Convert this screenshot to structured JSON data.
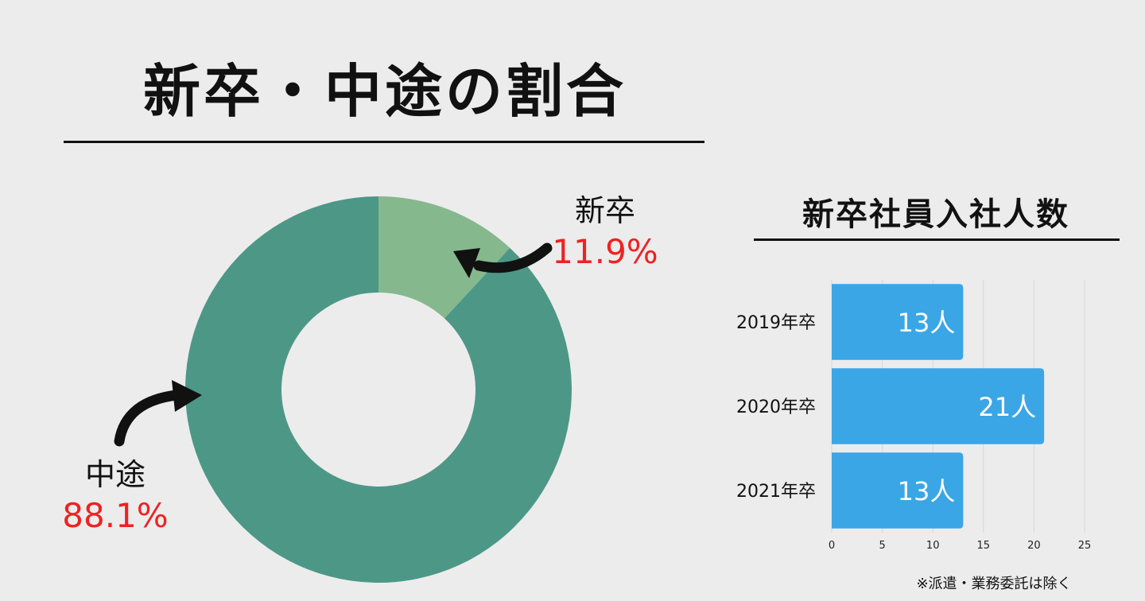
{
  "page": {
    "title": "新卒・中途の割合",
    "footnote": "※派遣・業務委託は除く"
  },
  "chart_data": [
    {
      "type": "pie",
      "variant": "donut",
      "categories": [
        "新卒",
        "中途"
      ],
      "values": [
        11.9,
        88.1
      ],
      "value_labels": [
        "11.9%",
        "88.1%"
      ],
      "colors": [
        "#86b88e",
        "#4d9787"
      ],
      "label_color": "#ee2222"
    },
    {
      "type": "bar",
      "orientation": "horizontal",
      "title": "新卒社員入社人数",
      "categories": [
        "2019年卒",
        "2020年卒",
        "2021年卒"
      ],
      "values": [
        13,
        21,
        13
      ],
      "value_labels": [
        "13人",
        "21人",
        "13人"
      ],
      "xlim": [
        0,
        25
      ],
      "xticks": [
        0,
        5,
        10,
        15,
        20,
        25
      ],
      "xtick_labels": [
        "0",
        "5",
        "10",
        "15",
        "20",
        "25"
      ],
      "grid": true,
      "bar_color": "#3ba6e6"
    }
  ]
}
